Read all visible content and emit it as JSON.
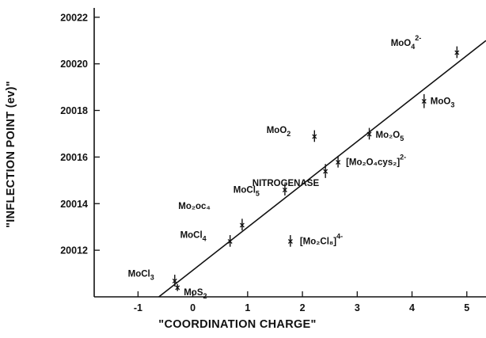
{
  "chart_data": {
    "type": "scatter",
    "title": "",
    "xlabel": "\"COORDINATION CHARGE\"",
    "ylabel": "\"INFLECTION POINT (ev)\"",
    "xlim": [
      -1.8,
      5.35
    ],
    "ylim": [
      20010.0,
      20022.4
    ],
    "x_ticks": [
      -1,
      0,
      1,
      2,
      3,
      4,
      5
    ],
    "x_tick_labels": [
      "-1",
      "0",
      "1",
      "2",
      "3",
      "4",
      "5"
    ],
    "y_ticks": [
      20012,
      20014,
      20016,
      20018,
      20020,
      20022
    ],
    "y_tick_labels": [
      "20012",
      "20014",
      "20016",
      "20018",
      "20020",
      "20022"
    ],
    "grid": false,
    "legend": "none",
    "color": "#111111",
    "fit_line": {
      "x": [
        -0.62,
        5.35
      ],
      "y": [
        20010.0,
        20021.0
      ]
    },
    "points": [
      {
        "label": "MoCl",
        "sub": "3",
        "sup": "",
        "x": -0.33,
        "y": 20010.7,
        "err": 0.5
      },
      {
        "label": "MoS",
        "sub": "2",
        "sup": "",
        "x": -0.28,
        "y": 20010.4,
        "err": 0.3
      },
      {
        "label": "MoCl",
        "sub": "4",
        "sup": "",
        "x": 0.68,
        "y": 20012.4,
        "err": 0.5
      },
      {
        "label": "Mo₂oc₄",
        "sub": "",
        "sup": "",
        "x": 0.9,
        "y": 20013.1,
        "err": 0.5
      },
      {
        "label": "MoCl",
        "sub": "5",
        "sup": "",
        "x": 1.68,
        "y": 20014.6,
        "err": 0.5
      },
      {
        "label": "[Mo₂Cl₈]",
        "sub": "",
        "sup": "4-",
        "x": 1.78,
        "y": 20012.4,
        "err": 0.5
      },
      {
        "label": "MoO",
        "sub": "2",
        "sup": "",
        "x": 2.22,
        "y": 20016.9,
        "err": 0.5
      },
      {
        "label": "NITROGENASE",
        "sub": "",
        "sup": "",
        "x": 2.42,
        "y": 20015.4,
        "err": 0.6
      },
      {
        "label": "[Mo₂O₄cys₂]",
        "sub": "",
        "sup": "2-",
        "x": 2.65,
        "y": 20015.8,
        "err": 0.5
      },
      {
        "label": "Mo₂O",
        "sub": "5",
        "sup": "",
        "x": 3.22,
        "y": 20017.0,
        "err": 0.5
      },
      {
        "label": "MoO",
        "sub": "3",
        "sup": "",
        "x": 4.22,
        "y": 20018.4,
        "err": 0.6
      },
      {
        "label": "MoO",
        "sub": "4",
        "sup": "2-",
        "x": 4.82,
        "y": 20020.5,
        "err": 0.5
      }
    ]
  }
}
